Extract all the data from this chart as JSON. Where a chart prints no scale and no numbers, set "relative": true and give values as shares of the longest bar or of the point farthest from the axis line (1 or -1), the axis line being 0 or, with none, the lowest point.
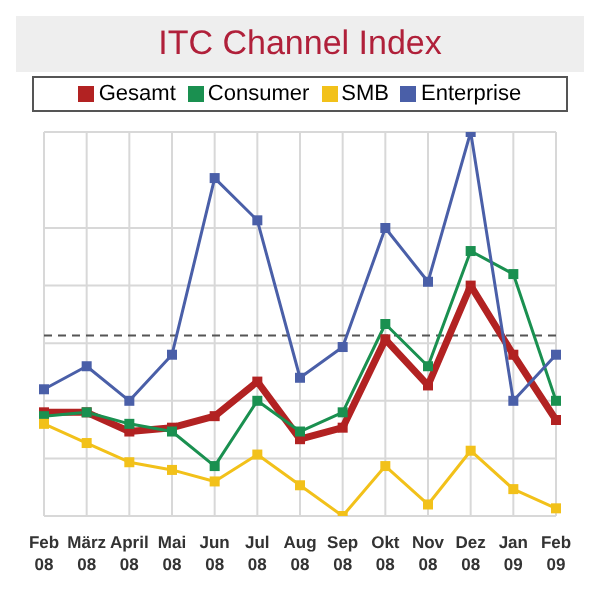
{
  "chart_data": {
    "type": "line",
    "title": "ITC Channel Index",
    "relative": true,
    "categories": [
      "Feb 08",
      "März 08",
      "April 08",
      "Mai 08",
      "Jun 08",
      "Jul 08",
      "Aug 08",
      "Sep 08",
      "Okt 08",
      "Nov 08",
      "Dez 08",
      "Jan 09",
      "Feb 09"
    ],
    "series": [
      {
        "name": "Gesamt",
        "color": "#b22222",
        "values": [
          0.27,
          0.27,
          0.22,
          0.23,
          0.26,
          0.35,
          0.2,
          0.23,
          0.46,
          0.34,
          0.6,
          0.42,
          0.25
        ]
      },
      {
        "name": "Consumer",
        "color": "#1a9050",
        "values": [
          0.26,
          0.27,
          0.24,
          0.22,
          0.13,
          0.3,
          0.22,
          0.27,
          0.5,
          0.39,
          0.69,
          0.63,
          0.3
        ]
      },
      {
        "name": "SMB",
        "color": "#f2c11a",
        "values": [
          0.24,
          0.19,
          0.14,
          0.12,
          0.09,
          0.16,
          0.08,
          0,
          0.13,
          0.03,
          0.17,
          0.07,
          0.02
        ]
      },
      {
        "name": "Enterprise",
        "color": "#4a5fa8",
        "values": [
          0.33,
          0.39,
          0.3,
          0.42,
          0.88,
          0.77,
          0.36,
          0.44,
          0.75,
          0.61,
          1,
          0.3,
          0.42
        ]
      }
    ],
    "ref_lines": [
      {
        "axis": "y",
        "value": 0.47,
        "color": "#555555",
        "line_style": "dashed"
      }
    ],
    "grid": true,
    "legend": "top",
    "marker": "square"
  }
}
